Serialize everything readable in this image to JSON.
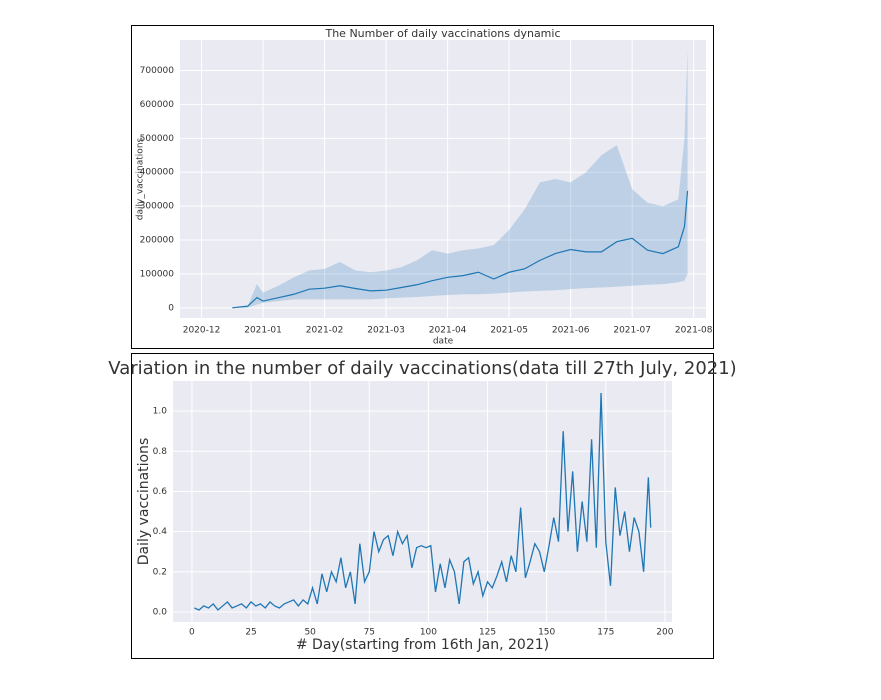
{
  "chart_data": [
    {
      "type": "line-band",
      "title": "The Number of daily vaccinations dynamic",
      "x_label": "date",
      "y_label": "daily_vaccinations",
      "color": "#1f77b4",
      "grid": true,
      "x": [
        0.5,
        0.75,
        0.9,
        1.0,
        1.25,
        1.5,
        1.75,
        2.0,
        2.25,
        2.5,
        2.75,
        3.0,
        3.25,
        3.5,
        3.75,
        4.0,
        4.25,
        4.5,
        4.75,
        5.0,
        5.25,
        5.5,
        5.75,
        6.0,
        6.25,
        6.5,
        6.75,
        7.0,
        7.25,
        7.5,
        7.75,
        7.85,
        7.9
      ],
      "values": [
        0,
        5000,
        30000,
        20000,
        30000,
        40000,
        55000,
        58000,
        65000,
        57000,
        50000,
        52000,
        60000,
        68000,
        80000,
        90000,
        95000,
        105000,
        85000,
        105000,
        115000,
        140000,
        160000,
        172000,
        165000,
        165000,
        195000,
        205000,
        170000,
        160000,
        180000,
        240000,
        345000
      ],
      "upper": [
        0,
        5000,
        70000,
        45000,
        65000,
        90000,
        110000,
        115000,
        135000,
        110000,
        105000,
        110000,
        120000,
        140000,
        170000,
        160000,
        170000,
        175000,
        185000,
        230000,
        290000,
        370000,
        380000,
        370000,
        400000,
        450000,
        480000,
        350000,
        310000,
        300000,
        320000,
        500000,
        760000
      ],
      "lower": [
        0,
        0,
        10000,
        15000,
        20000,
        25000,
        25000,
        25000,
        25000,
        25000,
        25000,
        28000,
        30000,
        32000,
        35000,
        38000,
        40000,
        40000,
        42000,
        45000,
        48000,
        50000,
        52000,
        55000,
        58000,
        60000,
        62000,
        65000,
        68000,
        70000,
        75000,
        80000,
        100000
      ],
      "xlim": [
        -0.35,
        8.2
      ],
      "xticks": [
        {
          "value": 0,
          "label": "2020-12"
        },
        {
          "value": 1,
          "label": "2021-01"
        },
        {
          "value": 2,
          "label": "2021-02"
        },
        {
          "value": 3,
          "label": "2021-03"
        },
        {
          "value": 4,
          "label": "2021-04"
        },
        {
          "value": 5,
          "label": "2021-05"
        },
        {
          "value": 6,
          "label": "2021-06"
        },
        {
          "value": 7,
          "label": "2021-07"
        },
        {
          "value": 8,
          "label": "2021-08"
        }
      ],
      "ylim": [
        -30000,
        790000
      ],
      "yticks": [
        0,
        100000,
        200000,
        300000,
        400000,
        500000,
        600000,
        700000
      ]
    },
    {
      "type": "line",
      "title": "Variation in the number of daily vaccinations(data till 27th July, 2021)",
      "x_label": "# Day(starting from 16th Jan, 2021)",
      "y_label": "Daily vaccinations",
      "color": "#1f77b4",
      "grid": true,
      "x": [
        1,
        3,
        5,
        7,
        9,
        11,
        13,
        15,
        17,
        19,
        21,
        23,
        25,
        27,
        29,
        31,
        33,
        35,
        37,
        39,
        41,
        43,
        45,
        47,
        49,
        51,
        53,
        55,
        57,
        59,
        61,
        63,
        65,
        67,
        69,
        71,
        73,
        75,
        77,
        79,
        81,
        83,
        85,
        87,
        89,
        91,
        93,
        95,
        97,
        99,
        101,
        103,
        105,
        107,
        109,
        111,
        113,
        115,
        117,
        119,
        121,
        123,
        125,
        127,
        129,
        131,
        133,
        135,
        137,
        139,
        141,
        143,
        145,
        147,
        149,
        151,
        153,
        155,
        157,
        159,
        161,
        163,
        165,
        167,
        169,
        171,
        173,
        175,
        177,
        179,
        181,
        183,
        185,
        187,
        189,
        191,
        193,
        194
      ],
      "values": [
        0.02,
        0.01,
        0.03,
        0.02,
        0.04,
        0.01,
        0.03,
        0.05,
        0.02,
        0.03,
        0.04,
        0.02,
        0.05,
        0.03,
        0.04,
        0.02,
        0.05,
        0.03,
        0.02,
        0.04,
        0.05,
        0.06,
        0.03,
        0.06,
        0.04,
        0.12,
        0.04,
        0.19,
        0.1,
        0.2,
        0.15,
        0.27,
        0.12,
        0.2,
        0.04,
        0.34,
        0.15,
        0.2,
        0.4,
        0.3,
        0.36,
        0.38,
        0.28,
        0.4,
        0.34,
        0.38,
        0.22,
        0.32,
        0.33,
        0.32,
        0.33,
        0.1,
        0.24,
        0.12,
        0.26,
        0.2,
        0.04,
        0.25,
        0.27,
        0.14,
        0.2,
        0.08,
        0.15,
        0.12,
        0.18,
        0.25,
        0.15,
        0.28,
        0.2,
        0.52,
        0.17,
        0.25,
        0.34,
        0.3,
        0.2,
        0.33,
        0.47,
        0.35,
        0.9,
        0.4,
        0.7,
        0.3,
        0.55,
        0.35,
        0.86,
        0.32,
        1.09,
        0.35,
        0.13,
        0.62,
        0.38,
        0.5,
        0.3,
        0.47,
        0.4,
        0.2,
        0.67,
        0.42
      ],
      "xlim": [
        -8,
        203
      ],
      "xticks": [
        0,
        25,
        50,
        75,
        100,
        125,
        150,
        175,
        200
      ],
      "ylim": [
        -0.05,
        1.15
      ],
      "yticks": [
        {
          "value": 0,
          "label": "0.0"
        },
        0.2,
        0.4,
        0.6,
        0.8,
        {
          "value": 1,
          "label": "1.0"
        }
      ]
    }
  ]
}
